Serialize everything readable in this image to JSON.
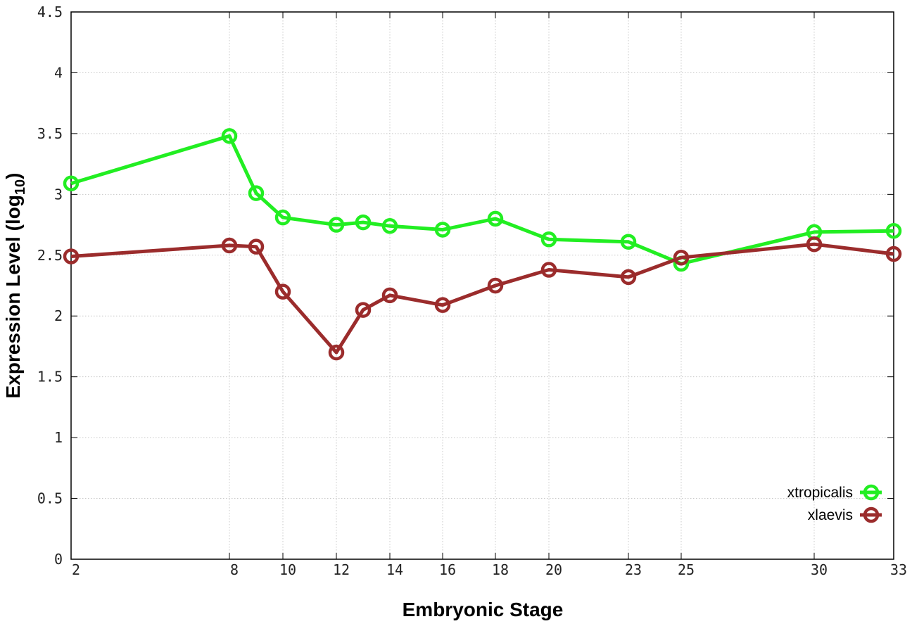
{
  "chart_data": {
    "type": "line",
    "title": "",
    "xlabel": "Embryonic Stage",
    "ylabel_main": "Expression Level (log",
    "ylabel_sub": "10",
    "ylabel_end": ")",
    "x_ticks": [
      "2",
      "8",
      "10",
      "12",
      "14",
      "16",
      "18",
      "20",
      "23",
      "25",
      "30",
      "33"
    ],
    "y_ticks": [
      "0",
      "0.5",
      "1",
      "1.5",
      "2",
      "2.5",
      "3",
      "3.5",
      "4",
      "4.5"
    ],
    "ylim": [
      0,
      4.5
    ],
    "grid": true,
    "legend_position": "bottom-right",
    "x": [
      2,
      8,
      9,
      10,
      12,
      13,
      14,
      16,
      18,
      20,
      23,
      25,
      30,
      33
    ],
    "series": [
      {
        "name": "xtropicalis",
        "color": "#22ee22",
        "values": [
          3.09,
          3.48,
          3.01,
          2.81,
          2.75,
          2.77,
          2.74,
          2.71,
          2.8,
          2.63,
          2.61,
          2.43,
          2.69,
          2.7
        ]
      },
      {
        "name": "xlaevis",
        "color": "#9b2c2c",
        "values": [
          2.49,
          2.58,
          2.57,
          2.2,
          1.7,
          2.05,
          2.17,
          2.09,
          2.25,
          2.38,
          2.32,
          2.48,
          2.59,
          2.51
        ]
      }
    ]
  }
}
